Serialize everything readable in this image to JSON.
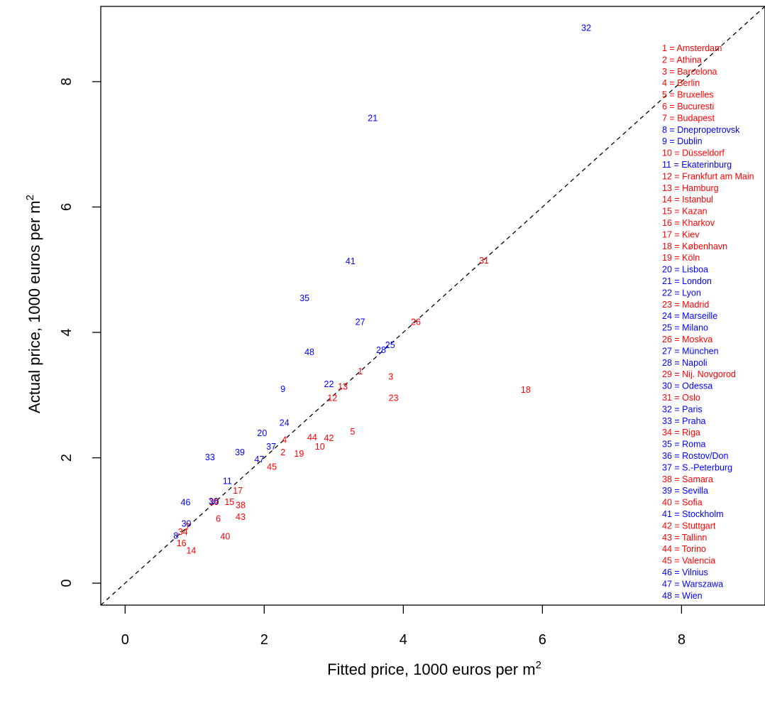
{
  "colors": {
    "red": "#ff0000",
    "blue": "#0000ff",
    "axis": "#000000",
    "diagonal": "#000000"
  },
  "chart_data": {
    "type": "scatter",
    "xlabel": {
      "main": "Fitted price, 1000 euros per m",
      "sup": "2"
    },
    "ylabel": {
      "main": "Actual price, 1000 euros per m",
      "sup": "2"
    },
    "xlim": [
      -0.35,
      9.2
    ],
    "ylim": [
      -0.35,
      9.2
    ],
    "xticks": [
      "0",
      "2",
      "4",
      "6",
      "8"
    ],
    "yticks": [
      "0",
      "2",
      "4",
      "6",
      "8"
    ],
    "reference_line": {
      "slope": 1,
      "intercept": 0,
      "style": "dashed"
    },
    "legend_position": "right",
    "points": [
      {
        "id": "1",
        "city": "Amsterdam",
        "x": 3.38,
        "y": 3.38,
        "color": "red"
      },
      {
        "id": "2",
        "city": "Athina",
        "x": 2.27,
        "y": 2.09,
        "color": "red"
      },
      {
        "id": "3",
        "city": "Barcelona",
        "x": 3.82,
        "y": 3.3,
        "color": "red"
      },
      {
        "id": "4",
        "city": "Berlin",
        "x": 2.29,
        "y": 2.29,
        "color": "red"
      },
      {
        "id": "5",
        "city": "Bruxelles",
        "x": 3.27,
        "y": 2.42,
        "color": "red"
      },
      {
        "id": "6",
        "city": "Bucuresti",
        "x": 1.34,
        "y": 1.03,
        "color": "red"
      },
      {
        "id": "7",
        "city": "Budapest",
        "x": 0.9,
        "y": 0.9,
        "color": "red"
      },
      {
        "id": "8",
        "city": "Dnepropetrovsk",
        "x": 0.73,
        "y": 0.76,
        "color": "blue"
      },
      {
        "id": "9",
        "city": "Dublin",
        "x": 2.27,
        "y": 3.1,
        "color": "blue"
      },
      {
        "id": "10",
        "city": "Düsseldorf",
        "x": 2.8,
        "y": 2.18,
        "color": "red"
      },
      {
        "id": "11",
        "city": "Ekaterinburg",
        "x": 1.47,
        "y": 1.63,
        "color": "blue"
      },
      {
        "id": "12",
        "city": "Frankfurt am Main",
        "x": 2.98,
        "y": 2.96,
        "color": "red"
      },
      {
        "id": "13",
        "city": "Hamburg",
        "x": 3.13,
        "y": 3.14,
        "color": "red"
      },
      {
        "id": "14",
        "city": "Istanbul",
        "x": 0.95,
        "y": 0.52,
        "color": "red"
      },
      {
        "id": "15",
        "city": "Kazan",
        "x": 1.5,
        "y": 1.3,
        "color": "red"
      },
      {
        "id": "16",
        "city": "Kharkov",
        "x": 0.81,
        "y": 0.64,
        "color": "red"
      },
      {
        "id": "17",
        "city": "Kiev",
        "x": 1.62,
        "y": 1.48,
        "color": "red"
      },
      {
        "id": "18",
        "city": "København",
        "x": 5.76,
        "y": 3.09,
        "color": "red"
      },
      {
        "id": "19",
        "city": "Köln",
        "x": 2.5,
        "y": 2.07,
        "color": "red"
      },
      {
        "id": "20",
        "city": "Lisboa",
        "x": 1.97,
        "y": 2.4,
        "color": "blue"
      },
      {
        "id": "21",
        "city": "London",
        "x": 3.56,
        "y": 7.42,
        "color": "blue"
      },
      {
        "id": "22",
        "city": "Lyon",
        "x": 2.93,
        "y": 3.18,
        "color": "blue"
      },
      {
        "id": "23",
        "city": "Madrid",
        "x": 3.86,
        "y": 2.96,
        "color": "red"
      },
      {
        "id": "24",
        "city": "Marseille",
        "x": 2.29,
        "y": 2.56,
        "color": "blue"
      },
      {
        "id": "25",
        "city": "Milano",
        "x": 3.81,
        "y": 3.8,
        "color": "blue"
      },
      {
        "id": "26",
        "city": "Moskva",
        "x": 4.18,
        "y": 4.17,
        "color": "red"
      },
      {
        "id": "27",
        "city": "München",
        "x": 3.38,
        "y": 4.17,
        "color": "blue"
      },
      {
        "id": "28",
        "city": "Napoli",
        "x": 3.68,
        "y": 3.72,
        "color": "blue"
      },
      {
        "id": "29",
        "city": "Nij. Novgorod",
        "x": 1.28,
        "y": 1.3,
        "color": "red"
      },
      {
        "id": "30",
        "city": "Odessa",
        "x": 0.88,
        "y": 0.95,
        "color": "blue"
      },
      {
        "id": "31",
        "city": "Oslo",
        "x": 5.16,
        "y": 5.15,
        "color": "red"
      },
      {
        "id": "32",
        "city": "Paris",
        "x": 6.63,
        "y": 8.86,
        "color": "blue"
      },
      {
        "id": "33",
        "city": "Praha",
        "x": 1.22,
        "y": 2.01,
        "color": "blue"
      },
      {
        "id": "34",
        "city": "Riga",
        "x": 0.83,
        "y": 0.82,
        "color": "red"
      },
      {
        "id": "35",
        "city": "Roma",
        "x": 2.58,
        "y": 4.55,
        "color": "blue"
      },
      {
        "id": "36",
        "city": "Rostov/Don",
        "x": 1.27,
        "y": 1.31,
        "color": "blue"
      },
      {
        "id": "37",
        "city": "S.-Peterburg",
        "x": 2.1,
        "y": 2.18,
        "color": "blue"
      },
      {
        "id": "38",
        "city": "Samara",
        "x": 1.66,
        "y": 1.25,
        "color": "red"
      },
      {
        "id": "39",
        "city": "Sevilla",
        "x": 1.65,
        "y": 2.09,
        "color": "blue"
      },
      {
        "id": "40",
        "city": "Sofia",
        "x": 1.44,
        "y": 0.75,
        "color": "red"
      },
      {
        "id": "41",
        "city": "Stockholm",
        "x": 3.24,
        "y": 5.14,
        "color": "blue"
      },
      {
        "id": "42",
        "city": "Stuttgart",
        "x": 2.93,
        "y": 2.32,
        "color": "red"
      },
      {
        "id": "43",
        "city": "Tallinn",
        "x": 1.66,
        "y": 1.06,
        "color": "red"
      },
      {
        "id": "44",
        "city": "Torino",
        "x": 2.69,
        "y": 2.33,
        "color": "red"
      },
      {
        "id": "45",
        "city": "Valencia",
        "x": 2.11,
        "y": 1.86,
        "color": "red"
      },
      {
        "id": "46",
        "city": "Vilnius",
        "x": 0.87,
        "y": 1.29,
        "color": "blue"
      },
      {
        "id": "47",
        "city": "Warszawa",
        "x": 1.93,
        "y": 1.98,
        "color": "blue"
      },
      {
        "id": "48",
        "city": "Wien",
        "x": 2.65,
        "y": 3.69,
        "color": "blue"
      }
    ]
  }
}
